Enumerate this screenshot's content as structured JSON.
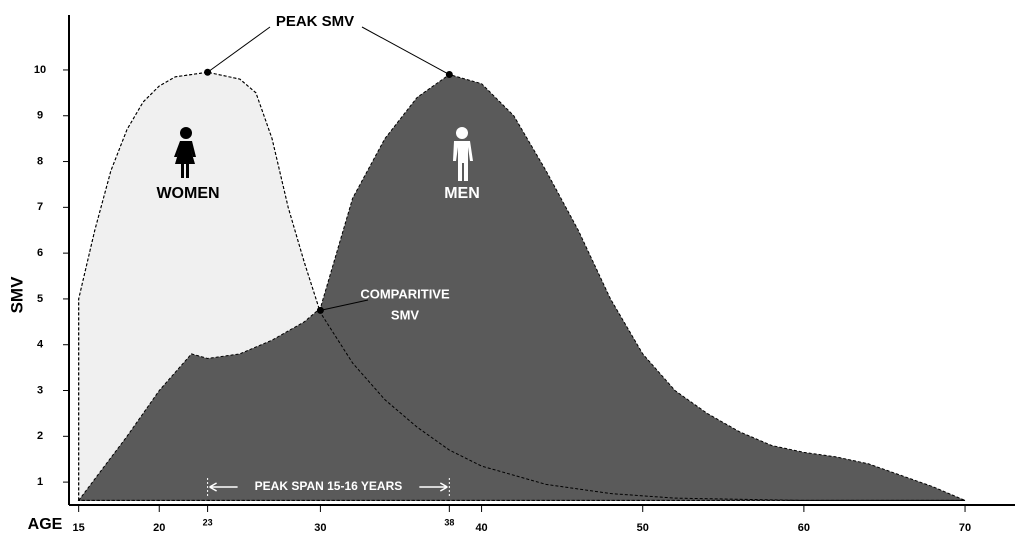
{
  "chart_data": {
    "type": "area",
    "y_label": "SMV",
    "x_label": "AGE",
    "xlim": [
      14.4,
      73.1
    ],
    "ylim": [
      0.5,
      11.2
    ],
    "xticks": [
      15,
      20,
      23,
      30,
      38,
      40,
      50,
      60,
      70
    ],
    "yticks": [
      1,
      2,
      3,
      4,
      5,
      6,
      7,
      8,
      9,
      10
    ],
    "series": [
      {
        "name": "WOMEN",
        "color": "#f0f0f0",
        "x": [
          15,
          15,
          16,
          17,
          18,
          19,
          20,
          21,
          23,
          25,
          26,
          27,
          28,
          29,
          30,
          32,
          34,
          36,
          38,
          40,
          44,
          48,
          52,
          60,
          70
        ],
        "values": [
          0.6,
          5,
          6.5,
          7.8,
          8.7,
          9.3,
          9.65,
          9.85,
          9.95,
          9.8,
          9.5,
          8.5,
          7,
          5.8,
          4.7,
          3.6,
          2.8,
          2.2,
          1.7,
          1.35,
          0.95,
          0.75,
          0.65,
          0.6,
          0.6
        ]
      },
      {
        "name": "MEN",
        "color": "#5a5a5a",
        "x": [
          15,
          18,
          20,
          22,
          23,
          25,
          27,
          29,
          30,
          31,
          32,
          34,
          36,
          38,
          40,
          42,
          44,
          46,
          48,
          50,
          52,
          54,
          56,
          58,
          60,
          62,
          64,
          66,
          68,
          70
        ],
        "values": [
          0.6,
          2.0,
          3.0,
          3.8,
          3.7,
          3.8,
          4.1,
          4.5,
          4.8,
          6,
          7.2,
          8.5,
          9.4,
          9.9,
          9.7,
          9,
          7.8,
          6.5,
          5,
          3.8,
          3,
          2.5,
          2.1,
          1.8,
          1.65,
          1.55,
          1.4,
          1.15,
          0.9,
          0.6
        ]
      }
    ],
    "annotations": {
      "peak": {
        "text": "PEAK SMV",
        "points": [
          {
            "x": 23,
            "y": 9.95
          },
          {
            "x": 38,
            "y": 9.9
          }
        ]
      },
      "comparative": {
        "lines": [
          "COMPARITIVE",
          "SMV"
        ],
        "point": {
          "x": 30,
          "y": 4.75
        }
      },
      "span": {
        "text": "PEAK SPAN 15-16 YEARS",
        "x_range": [
          23,
          38
        ]
      }
    }
  }
}
